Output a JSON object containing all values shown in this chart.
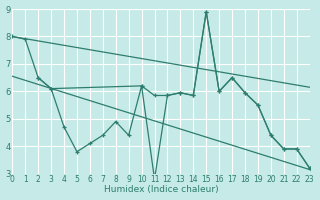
{
  "xlabel": "Humidex (Indice chaleur)",
  "xlim": [
    0,
    23
  ],
  "ylim": [
    3,
    9
  ],
  "yticks": [
    3,
    4,
    5,
    6,
    7,
    8,
    9
  ],
  "xticks": [
    0,
    1,
    2,
    3,
    4,
    5,
    6,
    7,
    8,
    9,
    10,
    11,
    12,
    13,
    14,
    15,
    16,
    17,
    18,
    19,
    20,
    21,
    22,
    23
  ],
  "bg_color": "#c5eae7",
  "grid_color": "#ffffff",
  "line_color": "#2e7d6e",
  "series1_x": [
    0,
    1,
    2,
    3,
    4,
    5,
    6,
    7,
    8,
    9,
    10,
    11,
    12,
    13,
    14,
    15,
    16,
    17,
    18,
    19,
    20,
    21,
    22,
    23
  ],
  "series1_y": [
    8.0,
    7.9,
    6.5,
    6.1,
    4.7,
    3.8,
    4.1,
    4.4,
    4.9,
    4.4,
    6.2,
    2.8,
    5.85,
    5.95,
    5.85,
    8.9,
    6.0,
    6.5,
    5.95,
    5.5,
    4.4,
    3.9,
    3.9,
    3.2
  ],
  "series2_x": [
    2,
    3,
    10,
    11,
    12,
    13,
    14,
    15,
    16,
    17,
    18,
    19,
    20,
    21,
    22,
    23
  ],
  "series2_y": [
    6.5,
    6.1,
    6.2,
    5.85,
    5.85,
    5.95,
    5.85,
    8.9,
    6.0,
    6.5,
    5.95,
    5.5,
    4.4,
    3.9,
    3.9,
    3.2
  ],
  "trend1_x": [
    0,
    23
  ],
  "trend1_y": [
    8.0,
    6.15
  ],
  "trend2_x": [
    0,
    23
  ],
  "trend2_y": [
    6.55,
    3.15
  ]
}
